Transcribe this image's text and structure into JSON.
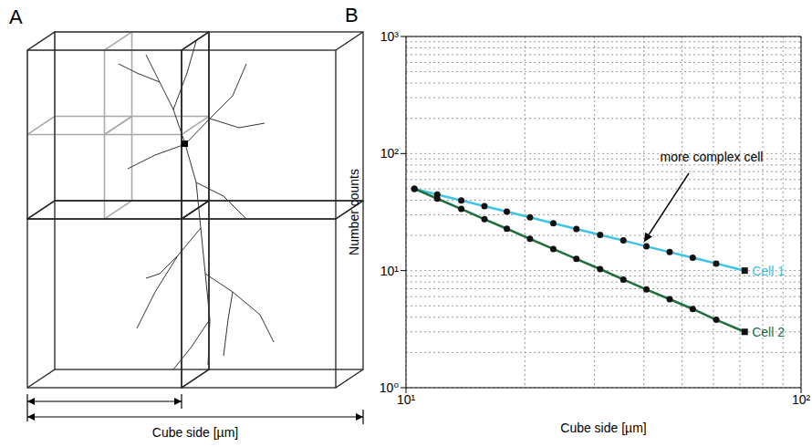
{
  "panel_a": {
    "panel_label": "A",
    "x_label": "Cube side [µm]"
  },
  "chart_data": {
    "type": "line",
    "panel_label": "B",
    "x_label": "Cube side [µm]",
    "y_label": "Number counts",
    "log": true,
    "grid": true,
    "marker": "circle",
    "xlim": [
      10,
      100
    ],
    "xticks": [
      {
        "value": 10,
        "label": "10¹"
      },
      {
        "value": 100,
        "label": "10²"
      }
    ],
    "ylim": [
      1,
      1000
    ],
    "yticks": [
      {
        "value": 1,
        "label": "10⁰"
      },
      {
        "value": 10,
        "label": "10¹"
      },
      {
        "value": 100,
        "label": "10²"
      },
      {
        "value": 1000,
        "label": "10³"
      }
    ],
    "series": [
      {
        "name": "Cell 1",
        "color": "#3cc3e6",
        "x": [
          10.5,
          12,
          13.8,
          15.8,
          18,
          20.6,
          23.6,
          27,
          31,
          35.5,
          40.6,
          46.5,
          53.2,
          61,
          72
        ],
        "values": [
          50,
          44.7,
          39.8,
          35.5,
          31.9,
          28.5,
          25.4,
          22.7,
          20.2,
          18.1,
          16.1,
          14.4,
          12.9,
          11.5,
          10
        ]
      },
      {
        "name": "Cell 2",
        "color": "#1d6e3c",
        "x": [
          10.5,
          12,
          13.8,
          15.8,
          18,
          20.6,
          23.6,
          27,
          31,
          35.5,
          40.6,
          46.5,
          53.2,
          61,
          72
        ],
        "values": [
          50,
          41.2,
          33.6,
          27.5,
          22.8,
          18.7,
          15.3,
          12.6,
          10.3,
          8.4,
          6.9,
          5.7,
          4.7,
          3.8,
          3
        ]
      }
    ],
    "annotations": [
      {
        "text": "more complex cell",
        "x": 44,
        "y": 85,
        "arrow_start": [
          52,
          68
        ],
        "arrow_end": [
          40,
          17.5
        ]
      }
    ]
  }
}
